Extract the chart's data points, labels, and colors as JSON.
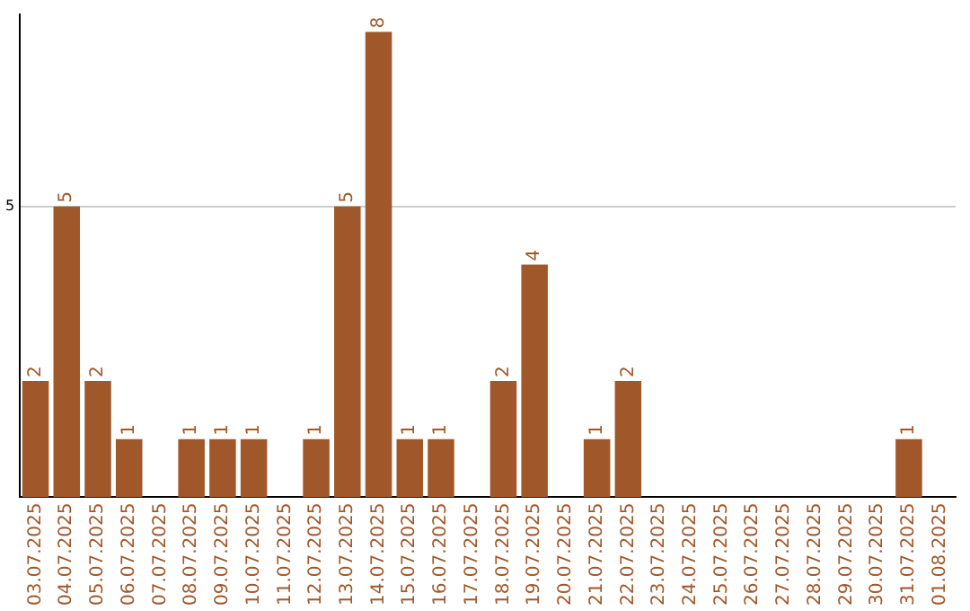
{
  "chart_data": {
    "type": "bar",
    "categories": [
      "03.07.2025",
      "04.07.2025",
      "05.07.2025",
      "06.07.2025",
      "07.07.2025",
      "08.07.2025",
      "09.07.2025",
      "10.07.2025",
      "11.07.2025",
      "12.07.2025",
      "13.07.2025",
      "14.07.2025",
      "15.07.2025",
      "16.07.2025",
      "17.07.2025",
      "18.07.2025",
      "19.07.2025",
      "20.07.2025",
      "21.07.2025",
      "22.07.2025",
      "23.07.2025",
      "24.07.2025",
      "25.07.2025",
      "26.07.2025",
      "27.07.2025",
      "28.07.2025",
      "29.07.2025",
      "30.07.2025",
      "31.07.2025",
      "01.08.2025"
    ],
    "values": [
      2,
      5,
      2,
      1,
      0,
      1,
      1,
      1,
      0,
      1,
      5,
      8,
      1,
      1,
      0,
      2,
      4,
      0,
      1,
      2,
      0,
      0,
      0,
      0,
      0,
      0,
      0,
      0,
      1,
      0
    ],
    "value_labels": [
      "2",
      "5",
      "2",
      "1",
      null,
      "1",
      "1",
      "1",
      null,
      "1",
      "5",
      "8",
      "1",
      "1",
      null,
      "2",
      "4",
      null,
      "1",
      "2",
      null,
      null,
      null,
      null,
      null,
      null,
      null,
      null,
      "1",
      null
    ],
    "color": "#a0582a",
    "ylim": [
      0,
      8.3
    ],
    "yticks": [
      5
    ],
    "grid": "y",
    "legend": false
  }
}
